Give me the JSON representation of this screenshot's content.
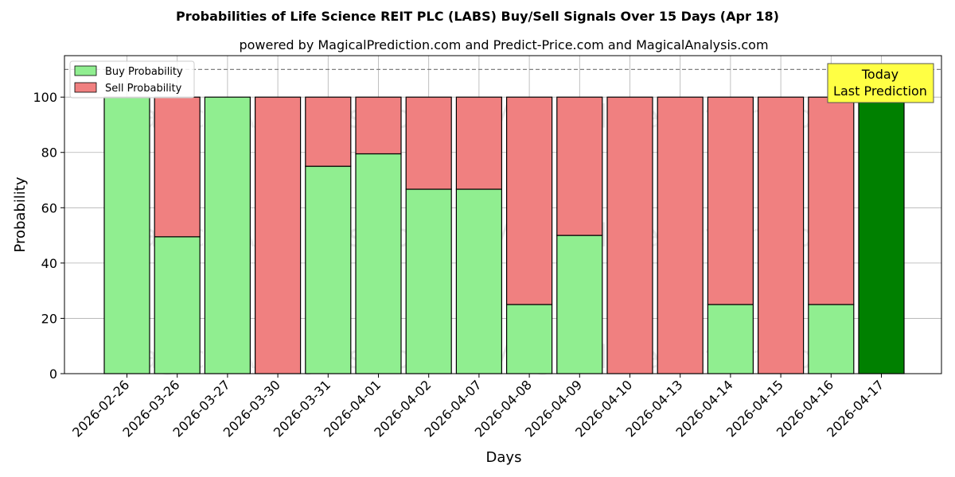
{
  "chart_data": {
    "type": "bar",
    "stacked": true,
    "title": "Probabilities of Life Science REIT PLC (LABS) Buy/Sell Signals Over 15 Days (Apr 18)",
    "subtitle": "powered by MagicalPrediction.com and Predict-Price.com and MagicalAnalysis.com",
    "xlabel": "Days",
    "ylabel": "Probability",
    "ylim": [
      0,
      115
    ],
    "yticks": [
      0,
      20,
      40,
      60,
      80,
      100
    ],
    "grid": true,
    "legend_position": "top-left",
    "reference_line": 110,
    "categories": [
      "2026-02-26",
      "2026-03-26",
      "2026-03-27",
      "2026-03-30",
      "2026-03-31",
      "2026-04-01",
      "2026-04-02",
      "2026-04-07",
      "2026-04-08",
      "2026-04-09",
      "2026-04-10",
      "2026-04-13",
      "2026-04-14",
      "2026-04-15",
      "2026-04-16",
      "2026-04-17"
    ],
    "series": [
      {
        "name": "Buy Probability",
        "color": "#90ee90",
        "values": [
          100,
          49.5,
          100,
          0,
          75,
          79.5,
          66.7,
          66.7,
          25,
          50,
          0,
          0,
          25,
          0,
          25,
          100
        ]
      },
      {
        "name": "Sell Probability",
        "color": "#f08080",
        "values": [
          0,
          50.5,
          0,
          100,
          25,
          20.5,
          33.3,
          33.3,
          75,
          50,
          100,
          100,
          75,
          100,
          75,
          0
        ]
      }
    ],
    "highlight": {
      "index": 15,
      "color": "#008000"
    },
    "annotation": {
      "text_line1": "Today",
      "text_line2": "Last Prediction",
      "color": "#ffff44"
    },
    "watermarks": [
      "MagicalAnalysis.com",
      "MagicalPrediction.com"
    ]
  }
}
